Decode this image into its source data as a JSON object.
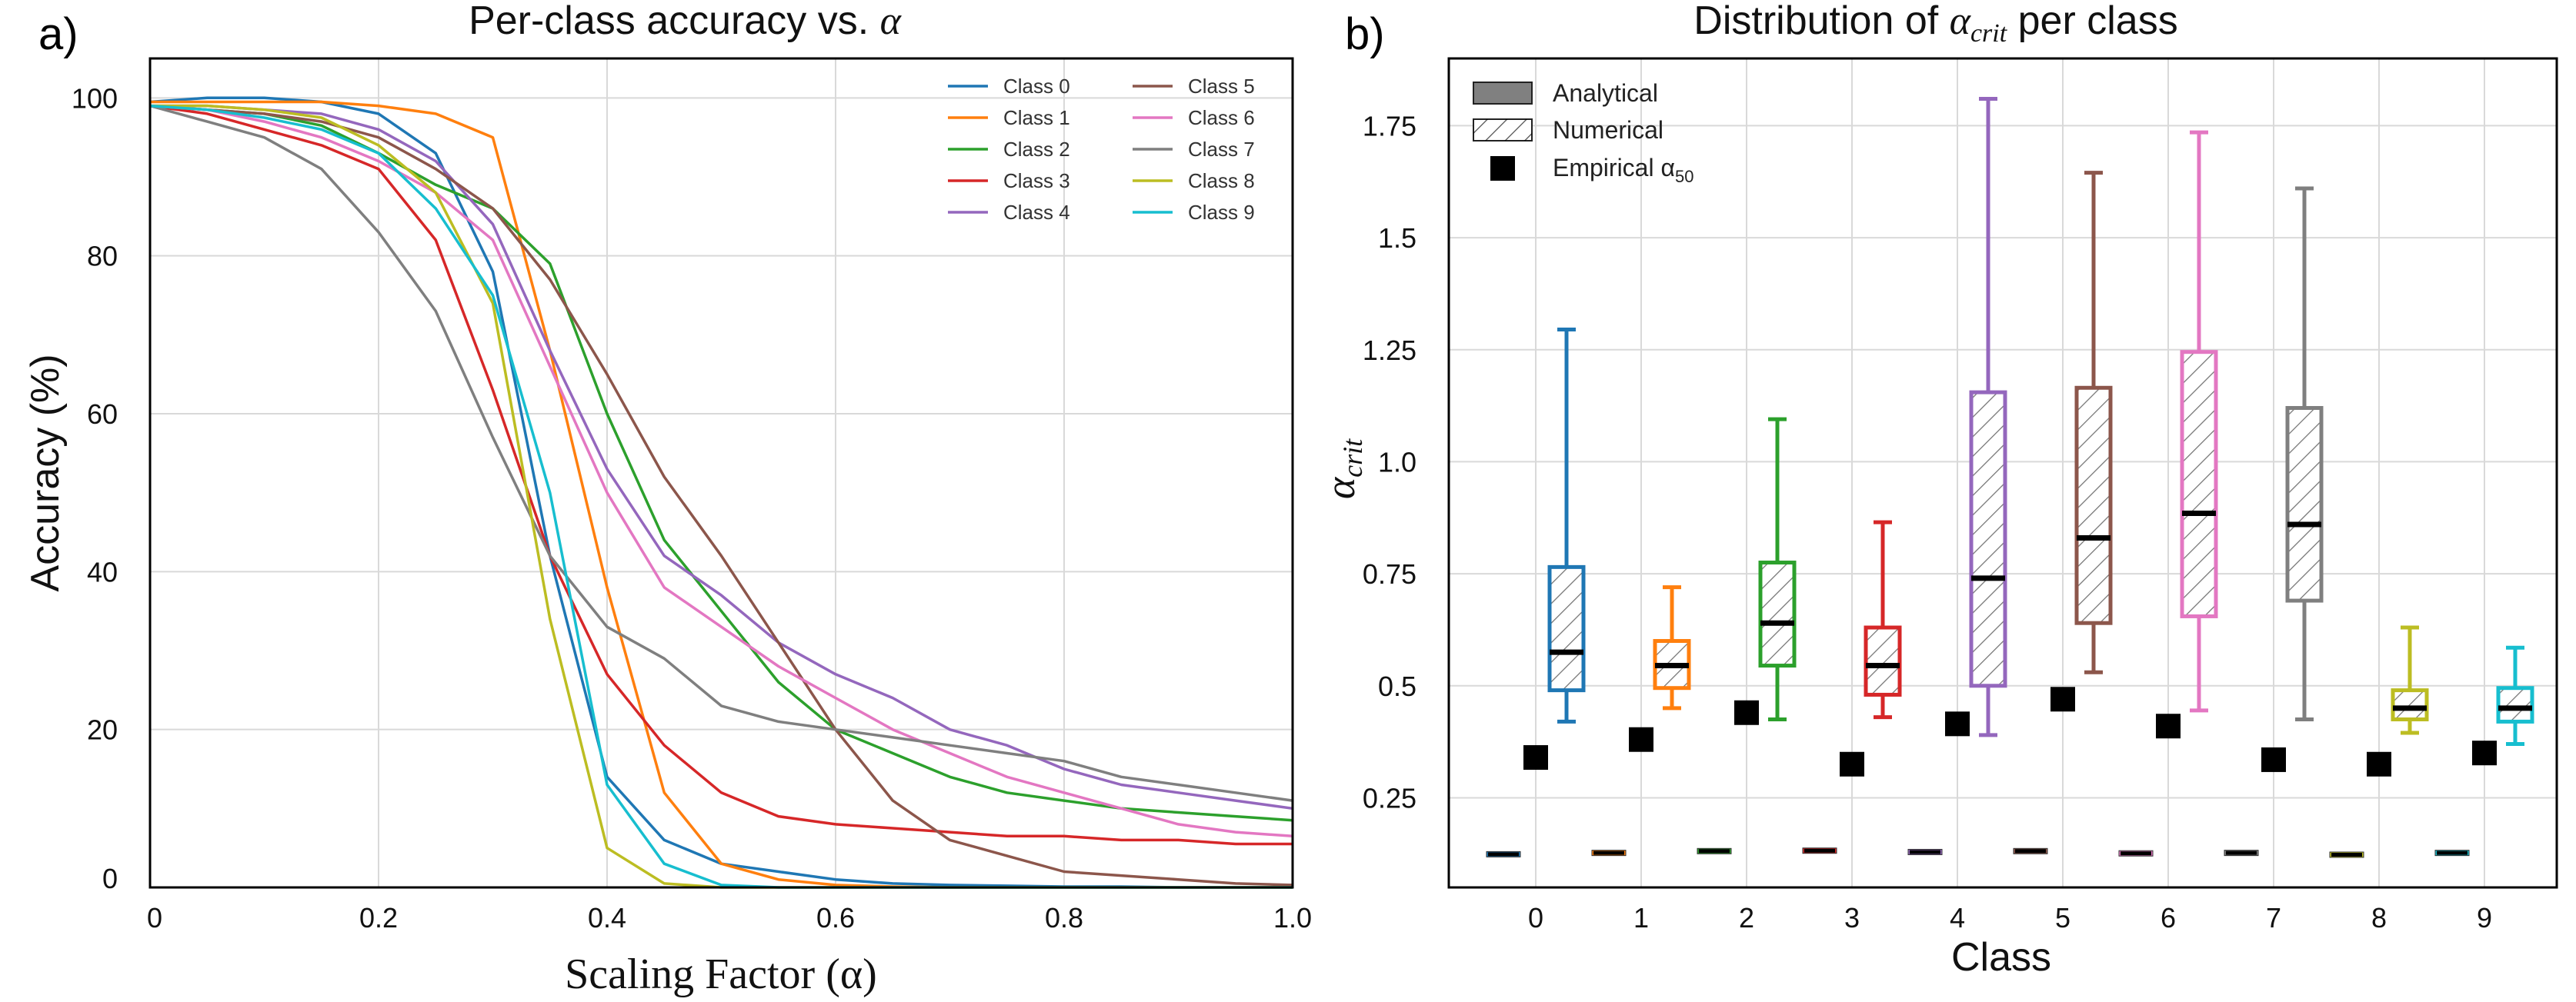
{
  "chart_data": [
    {
      "panel_label": "a)",
      "type": "line",
      "title": "Per-class accuracy vs. α",
      "xlabel": "Scaling Factor (α)",
      "ylabel": "Accuracy (%)",
      "xlim": [
        0,
        1.0
      ],
      "ylim": [
        0,
        105
      ],
      "xticks": [
        0,
        0.2,
        0.4,
        0.6,
        0.8,
        1.0
      ],
      "xtick_labels": [
        "0",
        "0.2",
        "0.4",
        "0.6",
        "0.8",
        "1.0"
      ],
      "yticks": [
        0,
        20,
        40,
        60,
        80,
        100
      ],
      "ytick_labels": [
        "0",
        "20",
        "40",
        "60",
        "80",
        "100"
      ],
      "grid": true,
      "legend_position": "top-right",
      "x": [
        0,
        0.05,
        0.1,
        0.15,
        0.2,
        0.25,
        0.3,
        0.35,
        0.4,
        0.45,
        0.5,
        0.55,
        0.6,
        0.65,
        0.7,
        0.75,
        0.8,
        0.85,
        0.9,
        0.95,
        1.0
      ],
      "series": [
        {
          "name": "Class 0",
          "color": "#1f77b4",
          "values": [
            99.5,
            100,
            100,
            99.5,
            98,
            93,
            78,
            42,
            14,
            6,
            3,
            2,
            1,
            0.5,
            0.3,
            0.2,
            0.1,
            0.1,
            0,
            0,
            0
          ]
        },
        {
          "name": "Class 1",
          "color": "#ff7f0e",
          "values": [
            99.5,
            99.5,
            99.5,
            99.5,
            99,
            98,
            95,
            68,
            38,
            12,
            3,
            1,
            0.3,
            0.1,
            0,
            0,
            0,
            0,
            0,
            0,
            0
          ]
        },
        {
          "name": "Class 2",
          "color": "#2ca02c",
          "values": [
            99,
            98.5,
            98,
            96.5,
            93,
            89,
            86,
            79,
            60,
            44,
            35,
            26,
            20,
            17,
            14,
            12,
            11,
            10,
            9.5,
            9,
            8.5
          ]
        },
        {
          "name": "Class 3",
          "color": "#d62728",
          "values": [
            99,
            98,
            96,
            94,
            91,
            82,
            63,
            42,
            27,
            18,
            12,
            9,
            8,
            7.5,
            7,
            6.5,
            6.5,
            6,
            6,
            5.5,
            5.5
          ]
        },
        {
          "name": "Class 4",
          "color": "#9467bd",
          "values": [
            99,
            99,
            98.5,
            98,
            96,
            92,
            84,
            68,
            53,
            42,
            37,
            31,
            27,
            24,
            20,
            18,
            15,
            13,
            12,
            11,
            10
          ]
        },
        {
          "name": "Class 5",
          "color": "#8c564b",
          "values": [
            99,
            98.5,
            98,
            97,
            95,
            91,
            86,
            77,
            65,
            52,
            42,
            31,
            20,
            11,
            6,
            4,
            2,
            1.5,
            1,
            0.5,
            0.3
          ]
        },
        {
          "name": "Class 6",
          "color": "#e377c2",
          "values": [
            99,
            98.5,
            97,
            95,
            92,
            88,
            82,
            66,
            50,
            38,
            33,
            28,
            24,
            20,
            17,
            14,
            12,
            10,
            8,
            7,
            6.5
          ]
        },
        {
          "name": "Class 7",
          "color": "#7f7f7f",
          "values": [
            99,
            97,
            95,
            91,
            83,
            73,
            57,
            42,
            33,
            29,
            23,
            21,
            20,
            19,
            18,
            17,
            16,
            14,
            13,
            12,
            11
          ]
        },
        {
          "name": "Class 8",
          "color": "#bcbd22",
          "values": [
            99,
            99,
            98.5,
            97.5,
            94,
            88,
            74,
            34,
            5,
            0.5,
            0,
            0,
            0,
            0,
            0,
            0,
            0,
            0,
            0,
            0,
            0
          ]
        },
        {
          "name": "Class 9",
          "color": "#17becf",
          "values": [
            99,
            98.5,
            97.5,
            96,
            93,
            86,
            75,
            50,
            13,
            3,
            0.3,
            0,
            0,
            0,
            0,
            0,
            0,
            0,
            0,
            0,
            0
          ]
        }
      ]
    },
    {
      "panel_label": "b)",
      "type": "box",
      "title": "Distribution of α_crit per class",
      "title_prefix": "Distribution of ",
      "title_symbol": "α",
      "title_subscript": "crit",
      "title_suffix": " per class",
      "xlabel": "Class",
      "ylabel": "α_crit",
      "ylabel_symbol": "α",
      "ylabel_subscript": "crit",
      "ylim": [
        0.05,
        1.9
      ],
      "yticks": [
        0.25,
        0.5,
        0.75,
        1.0,
        1.25,
        1.5,
        1.75
      ],
      "ytick_labels": [
        "0.25",
        "0.5",
        "0.75",
        "1.0",
        "1.25",
        "1.5",
        "1.75"
      ],
      "grid": true,
      "legend_position": "top-left",
      "legend": [
        {
          "label": "Analytical",
          "style": "solid-box"
        },
        {
          "label": "Numerical",
          "style": "hatched-box"
        },
        {
          "label": "Empirical α",
          "subscript": "50",
          "style": "square-marker"
        }
      ],
      "categories": [
        "0",
        "1",
        "2",
        "3",
        "4",
        "5",
        "6",
        "7",
        "8",
        "9"
      ],
      "numerical": [
        {
          "class": "0",
          "color": "#1f77b4",
          "whisker_low": 0.42,
          "q1": 0.49,
          "median": 0.575,
          "q3": 0.765,
          "whisker_high": 1.295
        },
        {
          "class": "1",
          "color": "#ff7f0e",
          "whisker_low": 0.45,
          "q1": 0.495,
          "median": 0.545,
          "q3": 0.6,
          "whisker_high": 0.72
        },
        {
          "class": "2",
          "color": "#2ca02c",
          "whisker_low": 0.425,
          "q1": 0.545,
          "median": 0.64,
          "q3": 0.775,
          "whisker_high": 1.095
        },
        {
          "class": "3",
          "color": "#d62728",
          "whisker_low": 0.43,
          "q1": 0.48,
          "median": 0.545,
          "q3": 0.63,
          "whisker_high": 0.865
        },
        {
          "class": "4",
          "color": "#9467bd",
          "whisker_low": 0.39,
          "q1": 0.5,
          "median": 0.74,
          "q3": 1.155,
          "whisker_high": 1.81
        },
        {
          "class": "5",
          "color": "#8c564b",
          "whisker_low": 0.53,
          "q1": 0.64,
          "median": 0.83,
          "q3": 1.165,
          "whisker_high": 1.645
        },
        {
          "class": "6",
          "color": "#e377c2",
          "whisker_low": 0.445,
          "q1": 0.655,
          "median": 0.885,
          "q3": 1.245,
          "whisker_high": 1.735
        },
        {
          "class": "7",
          "color": "#7f7f7f",
          "whisker_low": 0.425,
          "q1": 0.69,
          "median": 0.86,
          "q3": 1.12,
          "whisker_high": 1.61
        },
        {
          "class": "8",
          "color": "#bcbd22",
          "whisker_low": 0.395,
          "q1": 0.425,
          "median": 0.45,
          "q3": 0.49,
          "whisker_high": 0.63
        },
        {
          "class": "9",
          "color": "#17becf",
          "whisker_low": 0.37,
          "q1": 0.42,
          "median": 0.45,
          "q3": 0.495,
          "whisker_high": 0.585
        }
      ],
      "analytical": [
        {
          "class": "0",
          "color": "#1f77b4",
          "value": 0.124
        },
        {
          "class": "1",
          "color": "#ff7f0e",
          "value": 0.127
        },
        {
          "class": "2",
          "color": "#2ca02c",
          "value": 0.131
        },
        {
          "class": "3",
          "color": "#d62728",
          "value": 0.132
        },
        {
          "class": "4",
          "color": "#9467bd",
          "value": 0.129
        },
        {
          "class": "5",
          "color": "#8c564b",
          "value": 0.131
        },
        {
          "class": "6",
          "color": "#e377c2",
          "value": 0.126
        },
        {
          "class": "7",
          "color": "#7f7f7f",
          "value": 0.127
        },
        {
          "class": "8",
          "color": "#bcbd22",
          "value": 0.123
        },
        {
          "class": "9",
          "color": "#17becf",
          "value": 0.127
        }
      ],
      "empirical_alpha50": [
        0.34,
        0.38,
        0.44,
        0.325,
        0.415,
        0.47,
        0.41,
        0.335,
        0.325,
        0.35
      ]
    }
  ]
}
